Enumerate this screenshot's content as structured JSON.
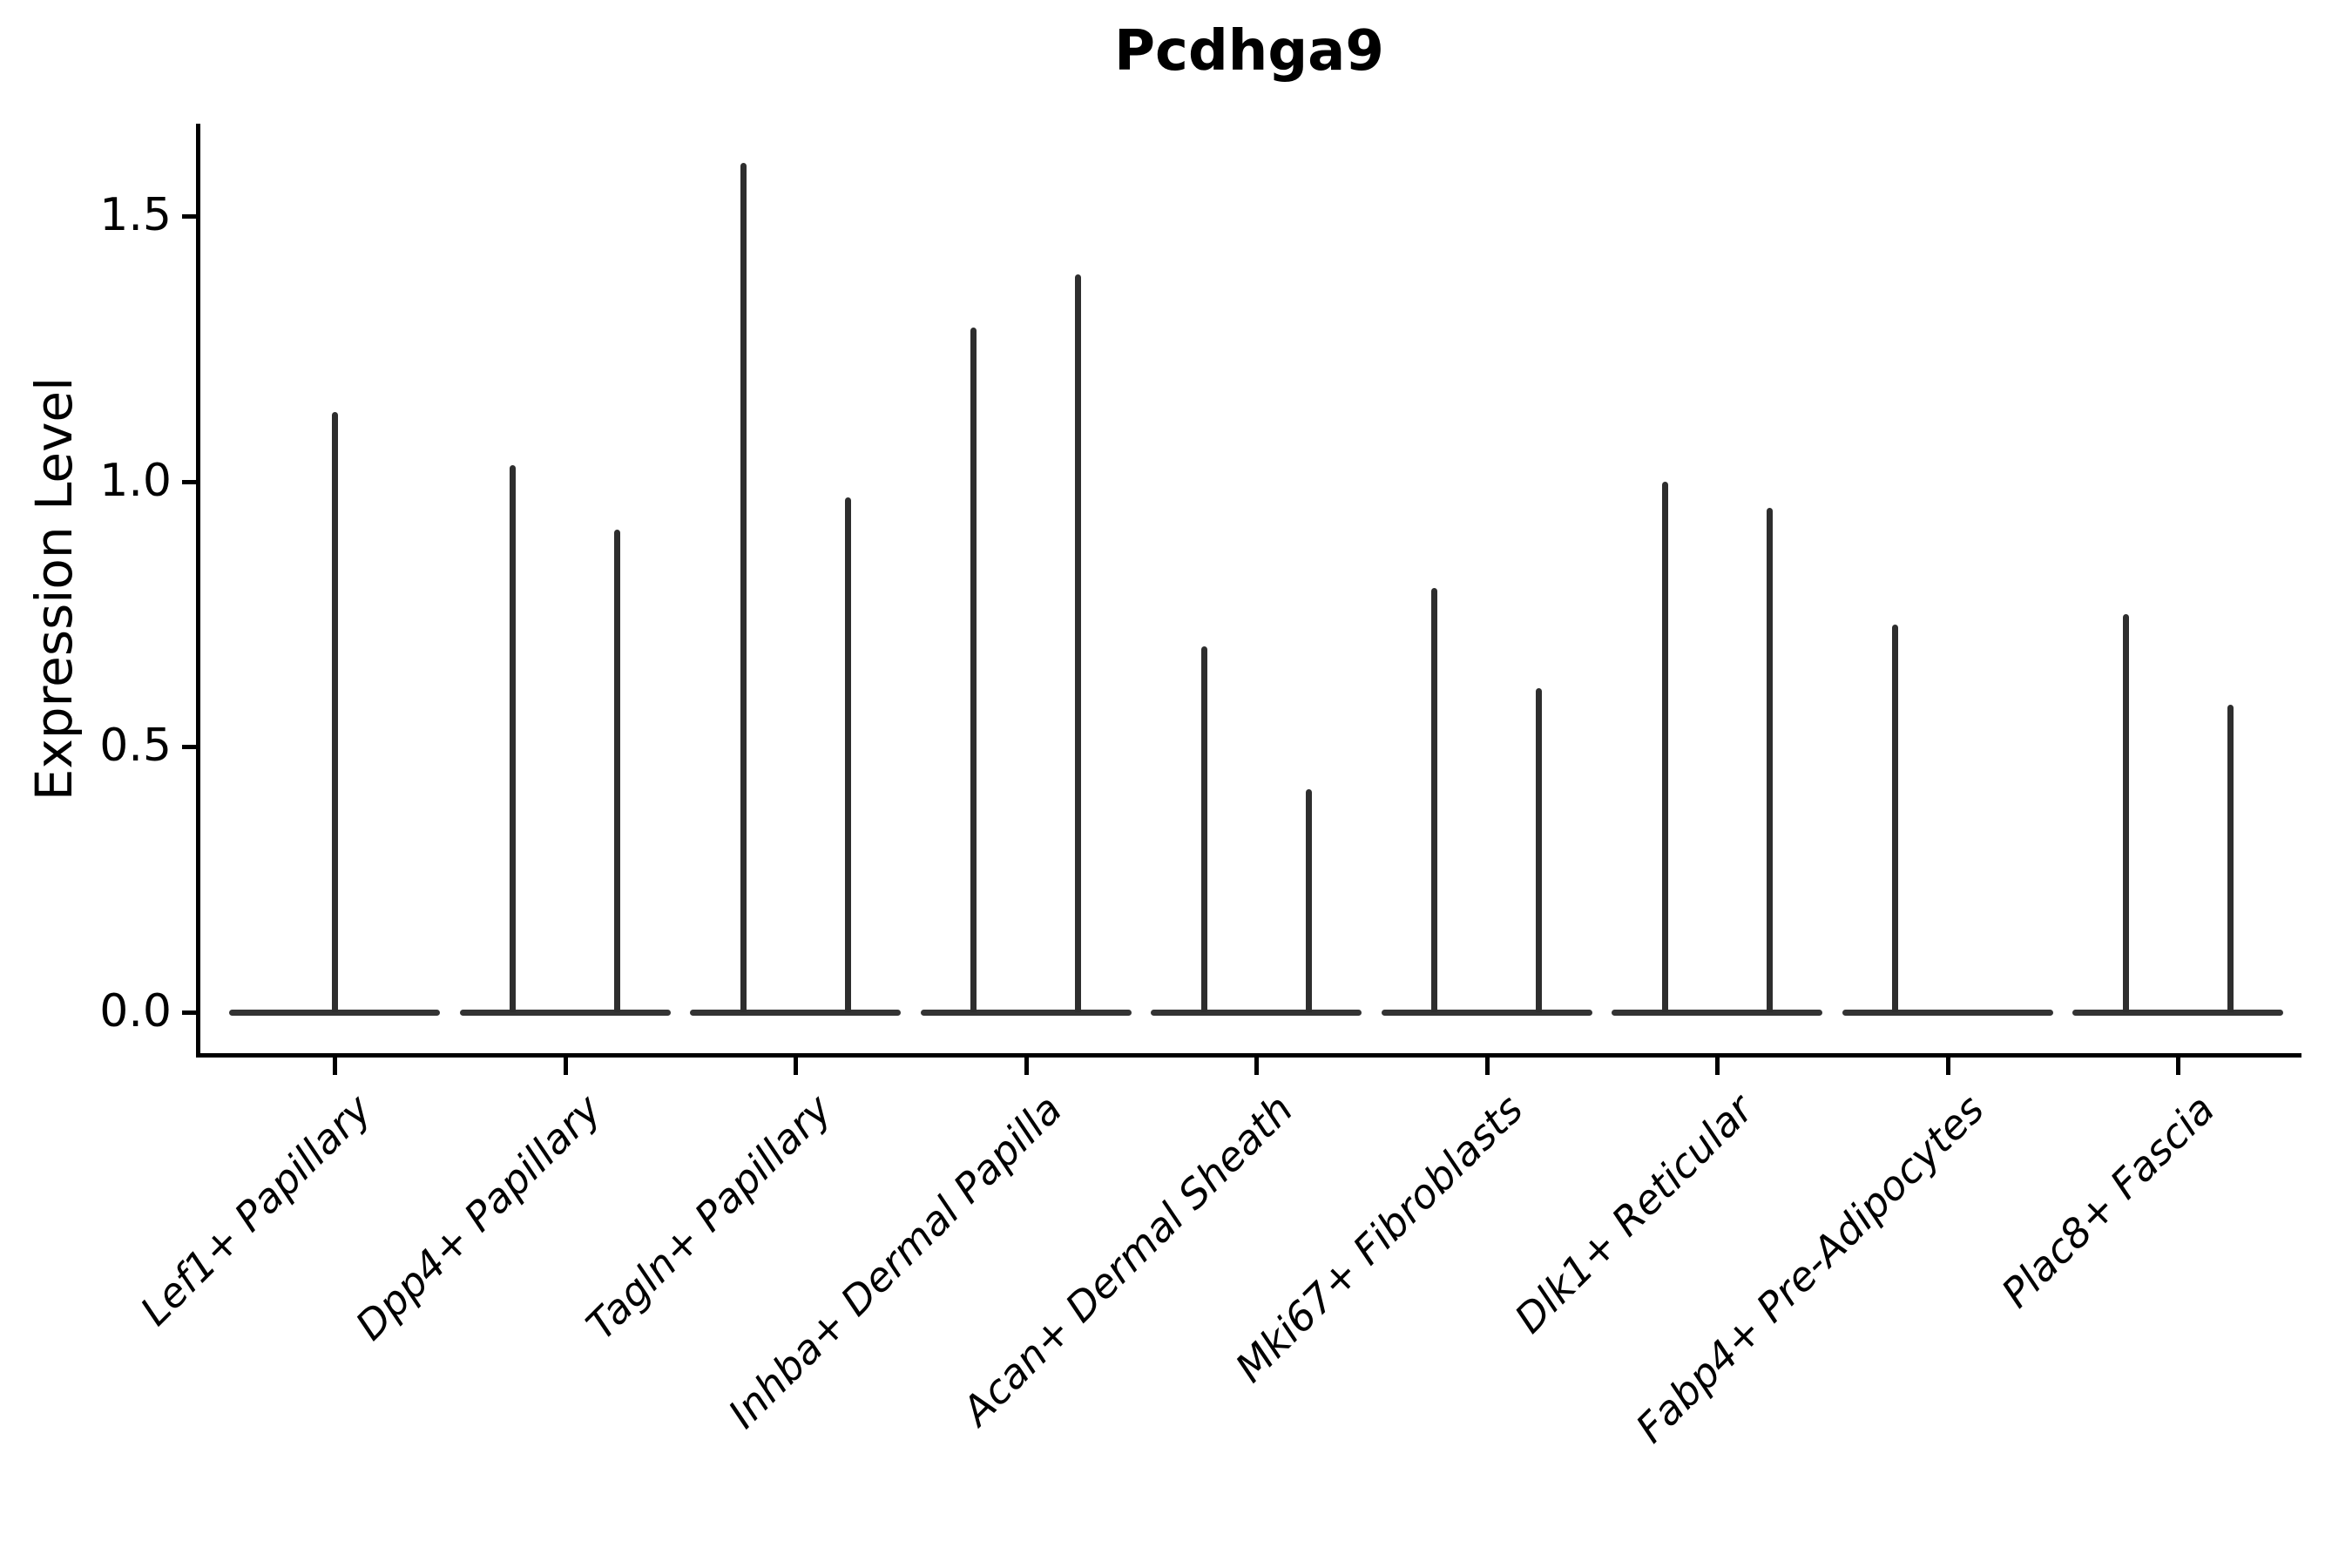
{
  "chart_data": {
    "type": "violin",
    "title": "Pcdhga9",
    "ylabel": "Expression Level",
    "xlabel": "",
    "ylim": [
      0,
      1.67
    ],
    "yticks": [
      "0.0",
      "0.5",
      "1.0",
      "1.5"
    ],
    "ytick_values": [
      0.0,
      0.5,
      1.0,
      1.5
    ],
    "grid": false,
    "legend": null,
    "categories": [
      "Lef1+ Papillary",
      "Dpp4+ Papillary",
      "Tagln+ Papillary",
      "Inhba+ Dermal Papilla",
      "Acan+ Dermal Sheath",
      "Mki67+ Fibroblasts",
      "Dlk1+ Reticular",
      "Fabp4+ Pre-Adipocytes",
      "Plac8+ Fascia"
    ],
    "violins_max_expression": [
      [
        1.13
      ],
      [
        1.03,
        0.91
      ],
      [
        1.6,
        0.97
      ],
      [
        1.29,
        1.39
      ],
      [
        0.69,
        0.42
      ],
      [
        0.8,
        0.61
      ],
      [
        1.0,
        0.95
      ],
      [
        0.73,
        0.0
      ],
      [
        0.75,
        0.58
      ]
    ],
    "violin_shape_note": "each violin is a flat dense line at 0 with a thin vertical tail up to its max value",
    "colors": {
      "spike": "#2e2e2e",
      "baseline": "#333333",
      "axis": "#000000",
      "text": "#000000",
      "background": "#ffffff"
    }
  }
}
